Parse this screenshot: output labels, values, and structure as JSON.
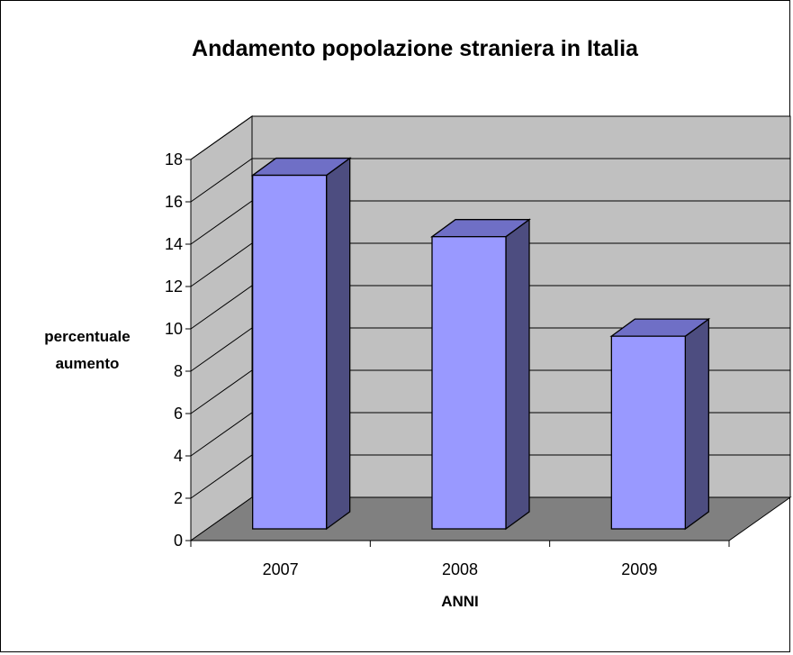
{
  "chart_data": {
    "type": "bar",
    "title": "Andamento popolazione straniera in Italia",
    "xlabel": "ANNI",
    "ylabel_lines": [
      "percentuale",
      "aumento"
    ],
    "categories": [
      "2007",
      "2008",
      "2009"
    ],
    "values": [
      16.7,
      13.8,
      9.1
    ],
    "ylim": [
      0,
      18
    ],
    "yticks": [
      "0",
      "2",
      "4",
      "6",
      "8",
      "10",
      "12",
      "14",
      "16",
      "18"
    ],
    "grid": true,
    "style": "3d-bar",
    "colors": {
      "bar_front": "#9999FF",
      "bar_top": "#6F6FC6",
      "bar_side": "#4D4D80",
      "back_wall": "#C0C0C0",
      "side_wall": "#C0C0C0",
      "floor": "#808080"
    }
  }
}
